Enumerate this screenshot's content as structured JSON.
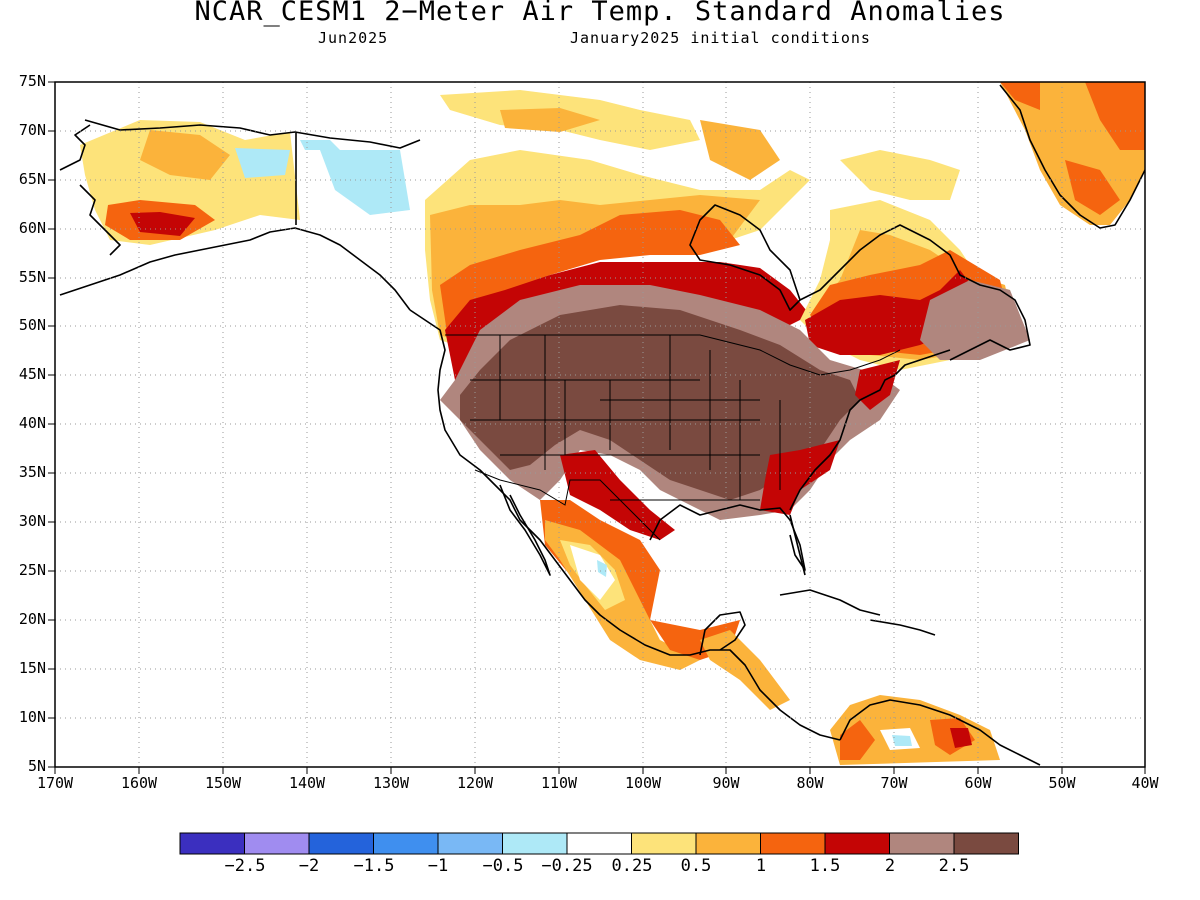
{
  "title": "NCAR_CESM1 2−Meter Air Temp. Standard Anomalies",
  "subtitle_left": "Jun2025",
  "subtitle_right": "January2025 initial conditions",
  "lat_labels": [
    "75N",
    "70N",
    "65N",
    "60N",
    "55N",
    "50N",
    "45N",
    "40N",
    "35N",
    "30N",
    "25N",
    "20N",
    "15N",
    "10N",
    "5N"
  ],
  "lon_labels": [
    "170W",
    "160W",
    "150W",
    "140W",
    "130W",
    "120W",
    "110W",
    "100W",
    "90W",
    "80W",
    "70W",
    "60W",
    "50W",
    "40W"
  ],
  "colorbar": {
    "colors": [
      "#3b2fbf",
      "#a08cf0",
      "#2463db",
      "#3f8fef",
      "#79b8f5",
      "#aee9f7",
      "#ffffff",
      "#fde37a",
      "#fbb33b",
      "#f5640f",
      "#c40505",
      "#b0867e",
      "#7a4a40"
    ],
    "labels": [
      "−2.5",
      "−2",
      "−1.5",
      "−1",
      "−0.5",
      "−0.25",
      "0.25",
      "0.5",
      "1",
      "1.5",
      "2",
      "2.5"
    ]
  }
}
